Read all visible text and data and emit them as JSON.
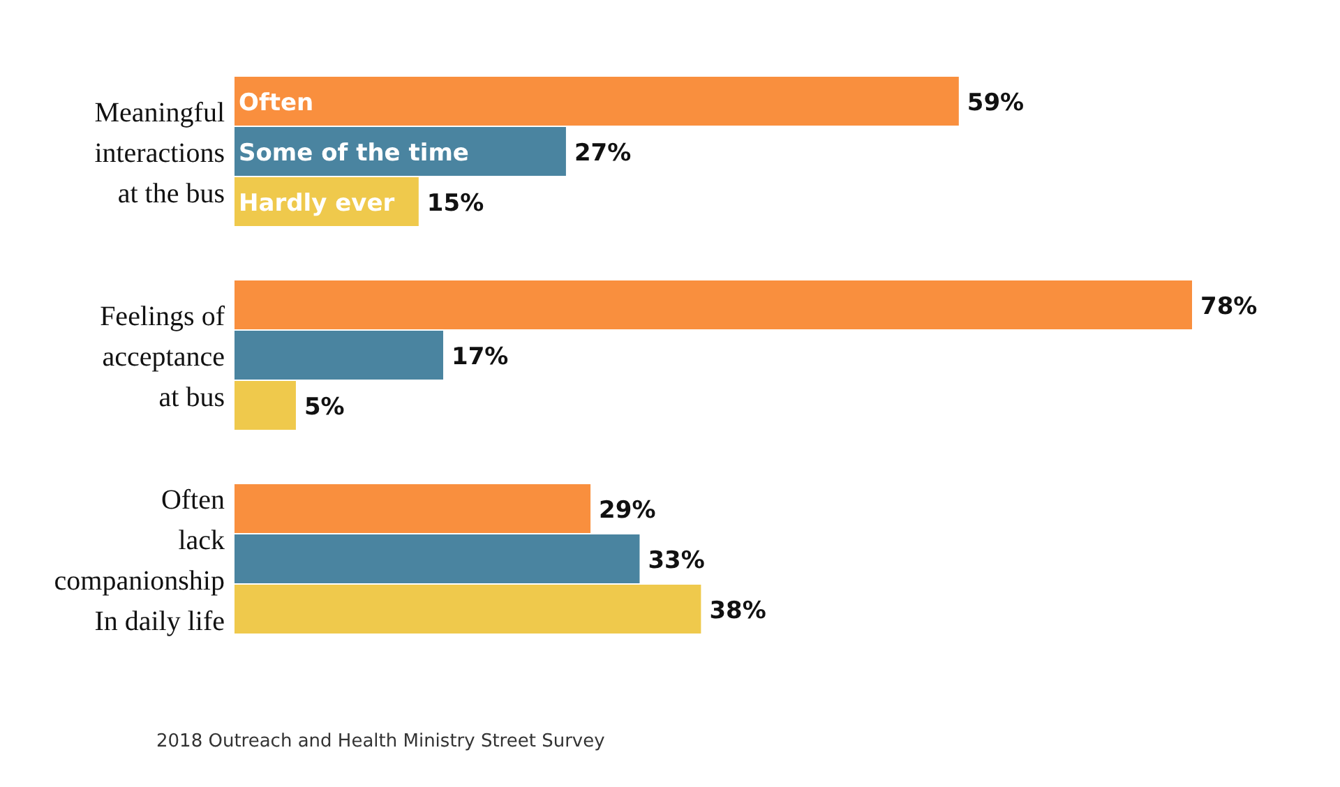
{
  "chart_data": {
    "type": "bar",
    "orientation": "horizontal",
    "categories": [
      "Meaningful\ninteractions\nat the bus",
      "Feelings of\nacceptance\nat bus",
      "Often\nlack\ncompanionship\nIn daily life"
    ],
    "series": [
      {
        "name": "Often",
        "color": "#f98f3e",
        "values": [
          59,
          78,
          29
        ],
        "value_labels": [
          "59%",
          "78%",
          "29%"
        ]
      },
      {
        "name": "Some of the time",
        "color": "#4a84a0",
        "values": [
          27,
          17,
          33
        ],
        "value_labels": [
          "27%",
          "17%",
          "33%"
        ]
      },
      {
        "name": "Hardly ever",
        "color": "#efc94c",
        "values": [
          15,
          5,
          38
        ],
        "value_labels": [
          "15%",
          "5%",
          "38%"
        ]
      }
    ],
    "annotations": [
      "2018 Outreach and Health Ministry Street Survey"
    ]
  }
}
